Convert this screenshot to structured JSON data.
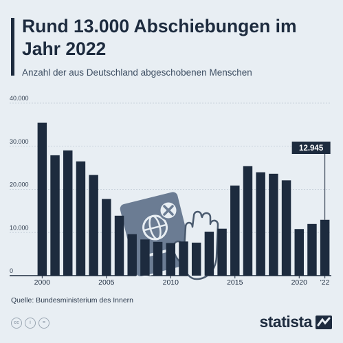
{
  "header": {
    "title": "Rund 13.000 Abschiebungen im Jahr 2022",
    "subtitle": "Anzahl der aus Deutschland abgeschobenen Menschen"
  },
  "footer": {
    "source": "Quelle: Bundesministerium des Innern",
    "brand": "statista",
    "license_icons": [
      "cc-icon",
      "by-icon",
      "nd-icon"
    ]
  },
  "colors": {
    "bar": "#1d2b3e",
    "background": "#e8eef3",
    "grid": "#c9d2db",
    "callout": "#1d2b3e",
    "illustration": "#6b7c93"
  },
  "chart_data": {
    "type": "bar",
    "title": "Rund 13.000 Abschiebungen im Jahr 2022",
    "subtitle": "Anzahl der aus Deutschland abgeschobenen Menschen",
    "categories": [
      "2000",
      "2001",
      "2002",
      "2003",
      "2004",
      "2005",
      "2006",
      "2007",
      "2008",
      "2009",
      "2010",
      "2011",
      "2012",
      "2013",
      "2014",
      "2015",
      "2016",
      "2017",
      "2018",
      "2019",
      "2020",
      "2021",
      "2022"
    ],
    "values": [
      35444,
      27902,
      29036,
      26487,
      23334,
      17773,
      13894,
      9617,
      8394,
      7830,
      7558,
      7917,
      7651,
      10198,
      10884,
      20888,
      25375,
      23966,
      23617,
      22097,
      10800,
      11982,
      12945
    ],
    "xtick_labels": [
      {
        "category": "2000",
        "label": "2000"
      },
      {
        "category": "2005",
        "label": "2005"
      },
      {
        "category": "2010",
        "label": "2010"
      },
      {
        "category": "2015",
        "label": "2015"
      },
      {
        "category": "2020",
        "label": "2020"
      },
      {
        "category": "2022",
        "label": "'22"
      }
    ],
    "yticks": [
      0,
      10000,
      20000,
      30000,
      40000
    ],
    "ytick_labels": [
      "0",
      "10.000",
      "20.000",
      "30.000",
      "40.000"
    ],
    "ylim": [
      0,
      40000
    ],
    "grid": true,
    "callout": {
      "category": "2022",
      "label": "12.945"
    },
    "xlabel": "",
    "ylabel": ""
  }
}
